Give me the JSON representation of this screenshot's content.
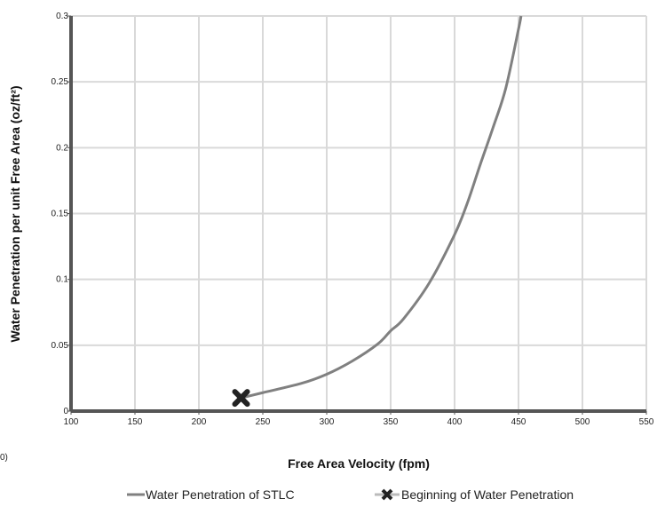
{
  "chart_data": {
    "type": "line",
    "title": "",
    "xlabel": "Free Area Velocity (fpm)",
    "ylabel": "Water Penetration per unit Free Area (oz/ft²)",
    "xlim": [
      100,
      550
    ],
    "ylim": [
      0,
      0.3
    ],
    "x_ticks": [
      100,
      150,
      200,
      250,
      300,
      350,
      400,
      450,
      500,
      550
    ],
    "y_ticks": [
      0,
      0.05,
      0.1,
      0.15,
      0.2,
      0.25,
      0.3
    ],
    "x_tick_labels": [
      "100",
      "150",
      "200",
      "250",
      "300",
      "350",
      "400",
      "450",
      "500",
      "550"
    ],
    "y_tick_labels": [
      "0",
      "0.05",
      "0.1",
      "0.15",
      "0.2",
      "0.25",
      "0.3"
    ],
    "grid": true,
    "legend_position": "bottom",
    "series": [
      {
        "name": "Water Penetration of STLC",
        "color": "#808080",
        "x": [
          233,
          250,
          280,
          300,
          320,
          340,
          350,
          360,
          380,
          400,
          410,
          420,
          430,
          440,
          450,
          452
        ],
        "y": [
          0.01,
          0.014,
          0.021,
          0.028,
          0.038,
          0.051,
          0.061,
          0.07,
          0.097,
          0.134,
          0.158,
          0.187,
          0.215,
          0.245,
          0.29,
          0.3
        ]
      },
      {
        "name": "Beginning of Water Penetration",
        "color": "#222222",
        "marker": "x",
        "x": [
          233
        ],
        "y": [
          0.01
        ]
      }
    ]
  },
  "stray_label": "0)"
}
